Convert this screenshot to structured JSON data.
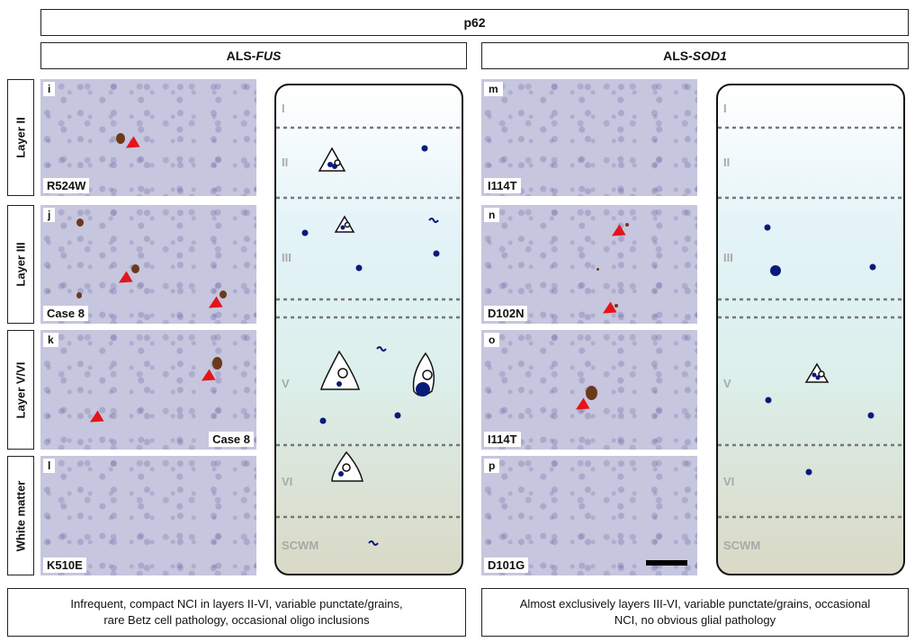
{
  "figure": {
    "stain": "p62",
    "groups": [
      {
        "prefix": "ALS-",
        "gene": "FUS"
      },
      {
        "prefix": "ALS-",
        "gene": "SOD1"
      }
    ],
    "row_labels": [
      "Layer II",
      "Layer III",
      "Layer V/VI",
      "White matter"
    ],
    "panels_left": [
      {
        "letter": "i",
        "label": "R524W"
      },
      {
        "letter": "j",
        "label": "Case 8"
      },
      {
        "letter": "k",
        "label": "Case 8"
      },
      {
        "letter": "l",
        "label": "K510E"
      }
    ],
    "panels_right": [
      {
        "letter": "m",
        "label": "I114T"
      },
      {
        "letter": "n",
        "label": "D102N"
      },
      {
        "letter": "o",
        "label": "I114T"
      },
      {
        "letter": "p",
        "label": "D101G"
      }
    ],
    "layer_labels": [
      "I",
      "II",
      "III",
      "V",
      "VI",
      "SCWM"
    ],
    "captions": {
      "fus": [
        "Infrequent, compact NCI in layers II-VI, variable punctate/grains,",
        "rare Betz cell pathology, occasional oligo inclusions"
      ],
      "sod1": [
        "Almost exclusively layers III-VI, variable punctate/grains, occasional",
        "NCI, no obvious glial pathology"
      ]
    },
    "colors": {
      "arrow": "#e4141b",
      "inclusion": "#0a1a7a",
      "layer_label": "#a9a9a9"
    }
  }
}
